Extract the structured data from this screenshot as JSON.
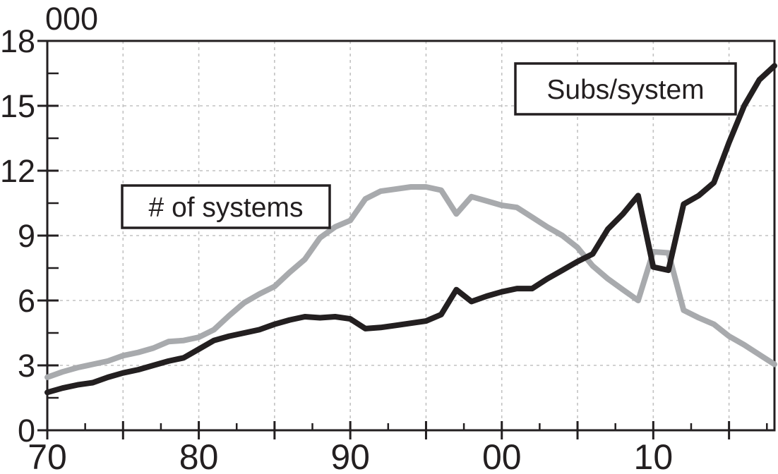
{
  "chart_data": {
    "type": "line",
    "title": "",
    "unit_label": "000",
    "xlabel": "",
    "ylabel": "000",
    "x_axis": {
      "range": [
        1970,
        2018
      ],
      "major_tick_step_years": 5,
      "minor_tick_step_years": 2.5,
      "labeled_ticks": [
        {
          "year": 1970,
          "label": "70"
        },
        {
          "year": 1980,
          "label": "80"
        },
        {
          "year": 1990,
          "label": "90"
        },
        {
          "year": 2000,
          "label": "00"
        },
        {
          "year": 2010,
          "label": "10"
        }
      ]
    },
    "y_axis": {
      "range": [
        0,
        18
      ],
      "major_tick_step": 3,
      "minor_tick_step": 1.5,
      "labeled_ticks": [
        {
          "value": 0,
          "label": "0"
        },
        {
          "value": 3,
          "label": "3"
        },
        {
          "value": 6,
          "label": "6"
        },
        {
          "value": 9,
          "label": "9"
        },
        {
          "value": 12,
          "label": "12"
        },
        {
          "value": 15,
          "label": "15"
        },
        {
          "value": 18,
          "label": "18"
        }
      ]
    },
    "grid": {
      "style": "dashed",
      "vertical_at_years": [
        1975,
        1980,
        1985,
        1990,
        1995,
        2000,
        2005,
        2010,
        2015
      ],
      "horizontal_at_values": [
        3,
        6,
        9,
        12,
        15
      ]
    },
    "legend_position": "boxed-inside-plot",
    "series": [
      {
        "name": "Subs/system",
        "color": "#231f20",
        "points": [
          [
            1970,
            1.75
          ],
          [
            1971,
            1.95
          ],
          [
            1972,
            2.1
          ],
          [
            1973,
            2.2
          ],
          [
            1974,
            2.45
          ],
          [
            1975,
            2.65
          ],
          [
            1976,
            2.8
          ],
          [
            1977,
            3.0
          ],
          [
            1978,
            3.2
          ],
          [
            1979,
            3.35
          ],
          [
            1980,
            3.75
          ],
          [
            1981,
            4.15
          ],
          [
            1982,
            4.35
          ],
          [
            1983,
            4.5
          ],
          [
            1984,
            4.65
          ],
          [
            1985,
            4.9
          ],
          [
            1986,
            5.1
          ],
          [
            1987,
            5.25
          ],
          [
            1988,
            5.2
          ],
          [
            1989,
            5.25
          ],
          [
            1990,
            5.15
          ],
          [
            1991,
            4.7
          ],
          [
            1992,
            4.75
          ],
          [
            1993,
            4.85
          ],
          [
            1994,
            4.95
          ],
          [
            1995,
            5.05
          ],
          [
            1996,
            5.35
          ],
          [
            1997,
            6.5
          ],
          [
            1998,
            5.95
          ],
          [
            1999,
            6.2
          ],
          [
            2000,
            6.4
          ],
          [
            2001,
            6.55
          ],
          [
            2002,
            6.55
          ],
          [
            2003,
            7.0
          ],
          [
            2004,
            7.4
          ],
          [
            2005,
            7.8
          ],
          [
            2006,
            8.15
          ],
          [
            2007,
            9.3
          ],
          [
            2008,
            10.0
          ],
          [
            2009,
            10.85
          ],
          [
            2010,
            7.55
          ],
          [
            2011,
            7.4
          ],
          [
            2012,
            10.45
          ],
          [
            2013,
            10.85
          ],
          [
            2014,
            11.45
          ],
          [
            2015,
            13.3
          ],
          [
            2016,
            15.0
          ],
          [
            2017,
            16.2
          ],
          [
            2018,
            16.85
          ]
        ]
      },
      {
        "name": "# of systems",
        "color": "#a8aaad",
        "points": [
          [
            1970,
            2.45
          ],
          [
            1971,
            2.7
          ],
          [
            1972,
            2.9
          ],
          [
            1973,
            3.05
          ],
          [
            1974,
            3.2
          ],
          [
            1975,
            3.45
          ],
          [
            1976,
            3.6
          ],
          [
            1977,
            3.8
          ],
          [
            1978,
            4.1
          ],
          [
            1979,
            4.15
          ],
          [
            1980,
            4.3
          ],
          [
            1981,
            4.65
          ],
          [
            1982,
            5.3
          ],
          [
            1983,
            5.9
          ],
          [
            1984,
            6.3
          ],
          [
            1985,
            6.65
          ],
          [
            1986,
            7.3
          ],
          [
            1987,
            7.9
          ],
          [
            1988,
            8.9
          ],
          [
            1989,
            9.4
          ],
          [
            1990,
            9.7
          ],
          [
            1991,
            10.7
          ],
          [
            1992,
            11.05
          ],
          [
            1993,
            11.15
          ],
          [
            1994,
            11.25
          ],
          [
            1995,
            11.25
          ],
          [
            1996,
            11.1
          ],
          [
            1997,
            10.0
          ],
          [
            1998,
            10.8
          ],
          [
            1999,
            10.6
          ],
          [
            2000,
            10.4
          ],
          [
            2001,
            10.3
          ],
          [
            2002,
            9.85
          ],
          [
            2003,
            9.4
          ],
          [
            2004,
            9.0
          ],
          [
            2005,
            8.45
          ],
          [
            2006,
            7.6
          ],
          [
            2007,
            7.0
          ],
          [
            2008,
            6.5
          ],
          [
            2009,
            6.0
          ],
          [
            2010,
            8.25
          ],
          [
            2011,
            8.2
          ],
          [
            2012,
            5.55
          ],
          [
            2013,
            5.2
          ],
          [
            2014,
            4.9
          ],
          [
            2015,
            4.35
          ],
          [
            2016,
            3.95
          ],
          [
            2017,
            3.5
          ],
          [
            2018,
            3.05
          ]
        ]
      }
    ],
    "colors": {
      "frame": "#231f20",
      "grid": "#c2c2c2",
      "background": "#ffffff"
    }
  }
}
